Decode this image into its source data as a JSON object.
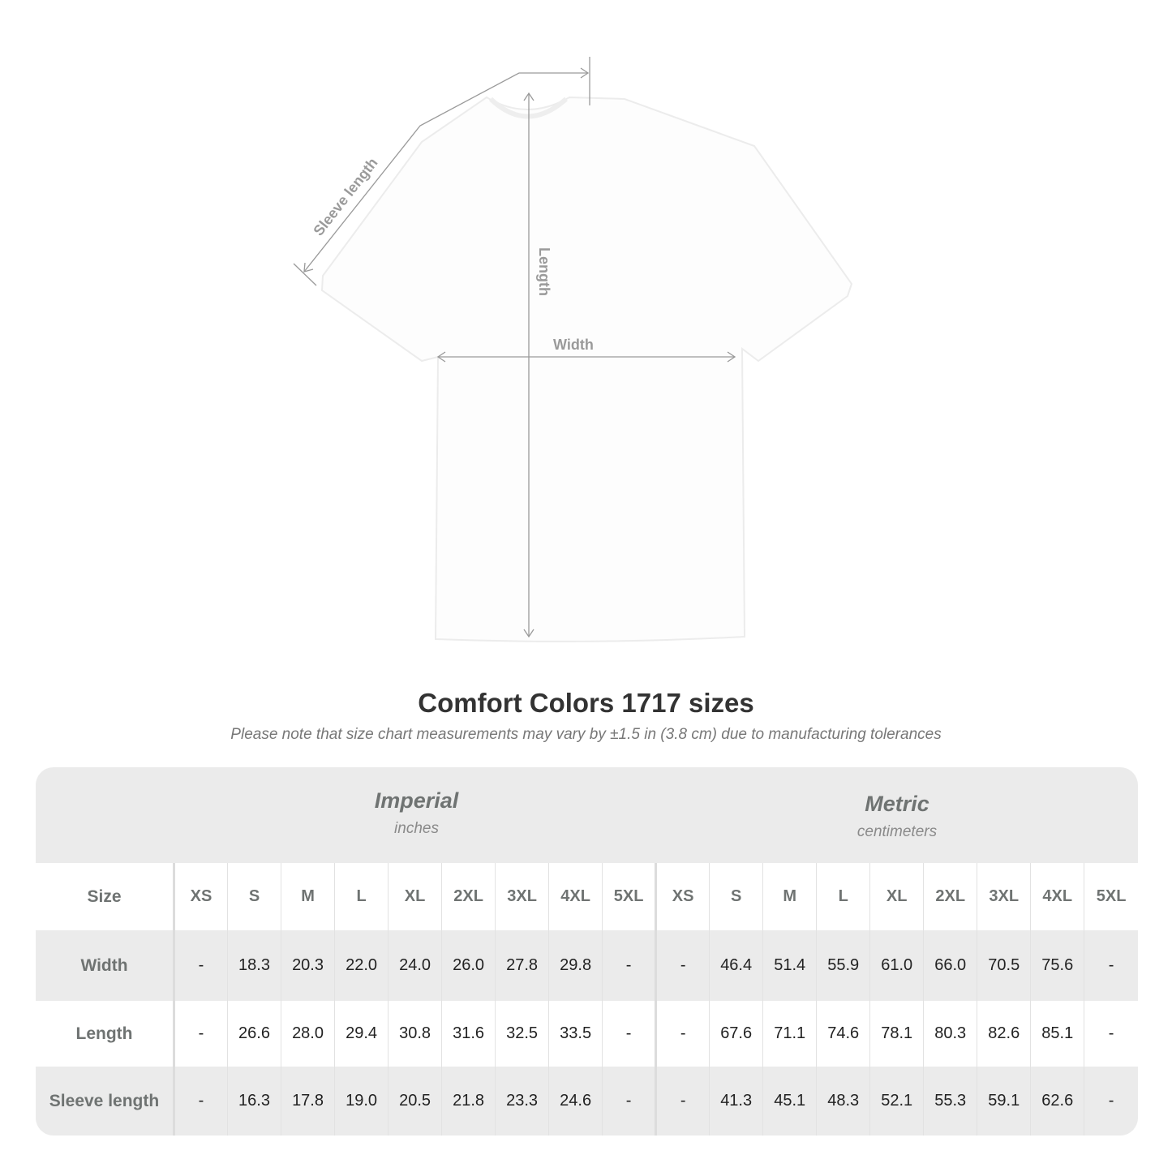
{
  "diagram": {
    "sleeve_label": "Sleeve length",
    "length_label": "Length",
    "width_label": "Width"
  },
  "title": "Comfort Colors 1717 sizes",
  "note": "Please note that size chart measurements may vary by ±1.5 in (3.8 cm) due to manufacturing tolerances",
  "imperial": {
    "name": "Imperial",
    "unit": "inches"
  },
  "metric": {
    "name": "Metric",
    "unit": "centimeters"
  },
  "table": {
    "size_label": "Size",
    "sizes": [
      "XS",
      "S",
      "M",
      "L",
      "XL",
      "2XL",
      "3XL",
      "4XL",
      "5XL"
    ],
    "rows": [
      {
        "label": "Width",
        "imperial": [
          "-",
          "18.3",
          "20.3",
          "22.0",
          "24.0",
          "26.0",
          "27.8",
          "29.8",
          "-"
        ],
        "metric": [
          "-",
          "46.4",
          "51.4",
          "55.9",
          "61.0",
          "66.0",
          "70.5",
          "75.6",
          "-"
        ]
      },
      {
        "label": "Length",
        "imperial": [
          "-",
          "26.6",
          "28.0",
          "29.4",
          "30.8",
          "31.6",
          "32.5",
          "33.5",
          "-"
        ],
        "metric": [
          "-",
          "67.6",
          "71.1",
          "74.6",
          "78.1",
          "80.3",
          "82.6",
          "85.1",
          "-"
        ]
      },
      {
        "label": "Sleeve length",
        "imperial": [
          "-",
          "16.3",
          "17.8",
          "19.0",
          "20.5",
          "21.8",
          "23.3",
          "24.6",
          "-"
        ],
        "metric": [
          "-",
          "41.3",
          "45.1",
          "48.3",
          "52.1",
          "55.3",
          "59.1",
          "62.6",
          "-"
        ]
      }
    ]
  }
}
